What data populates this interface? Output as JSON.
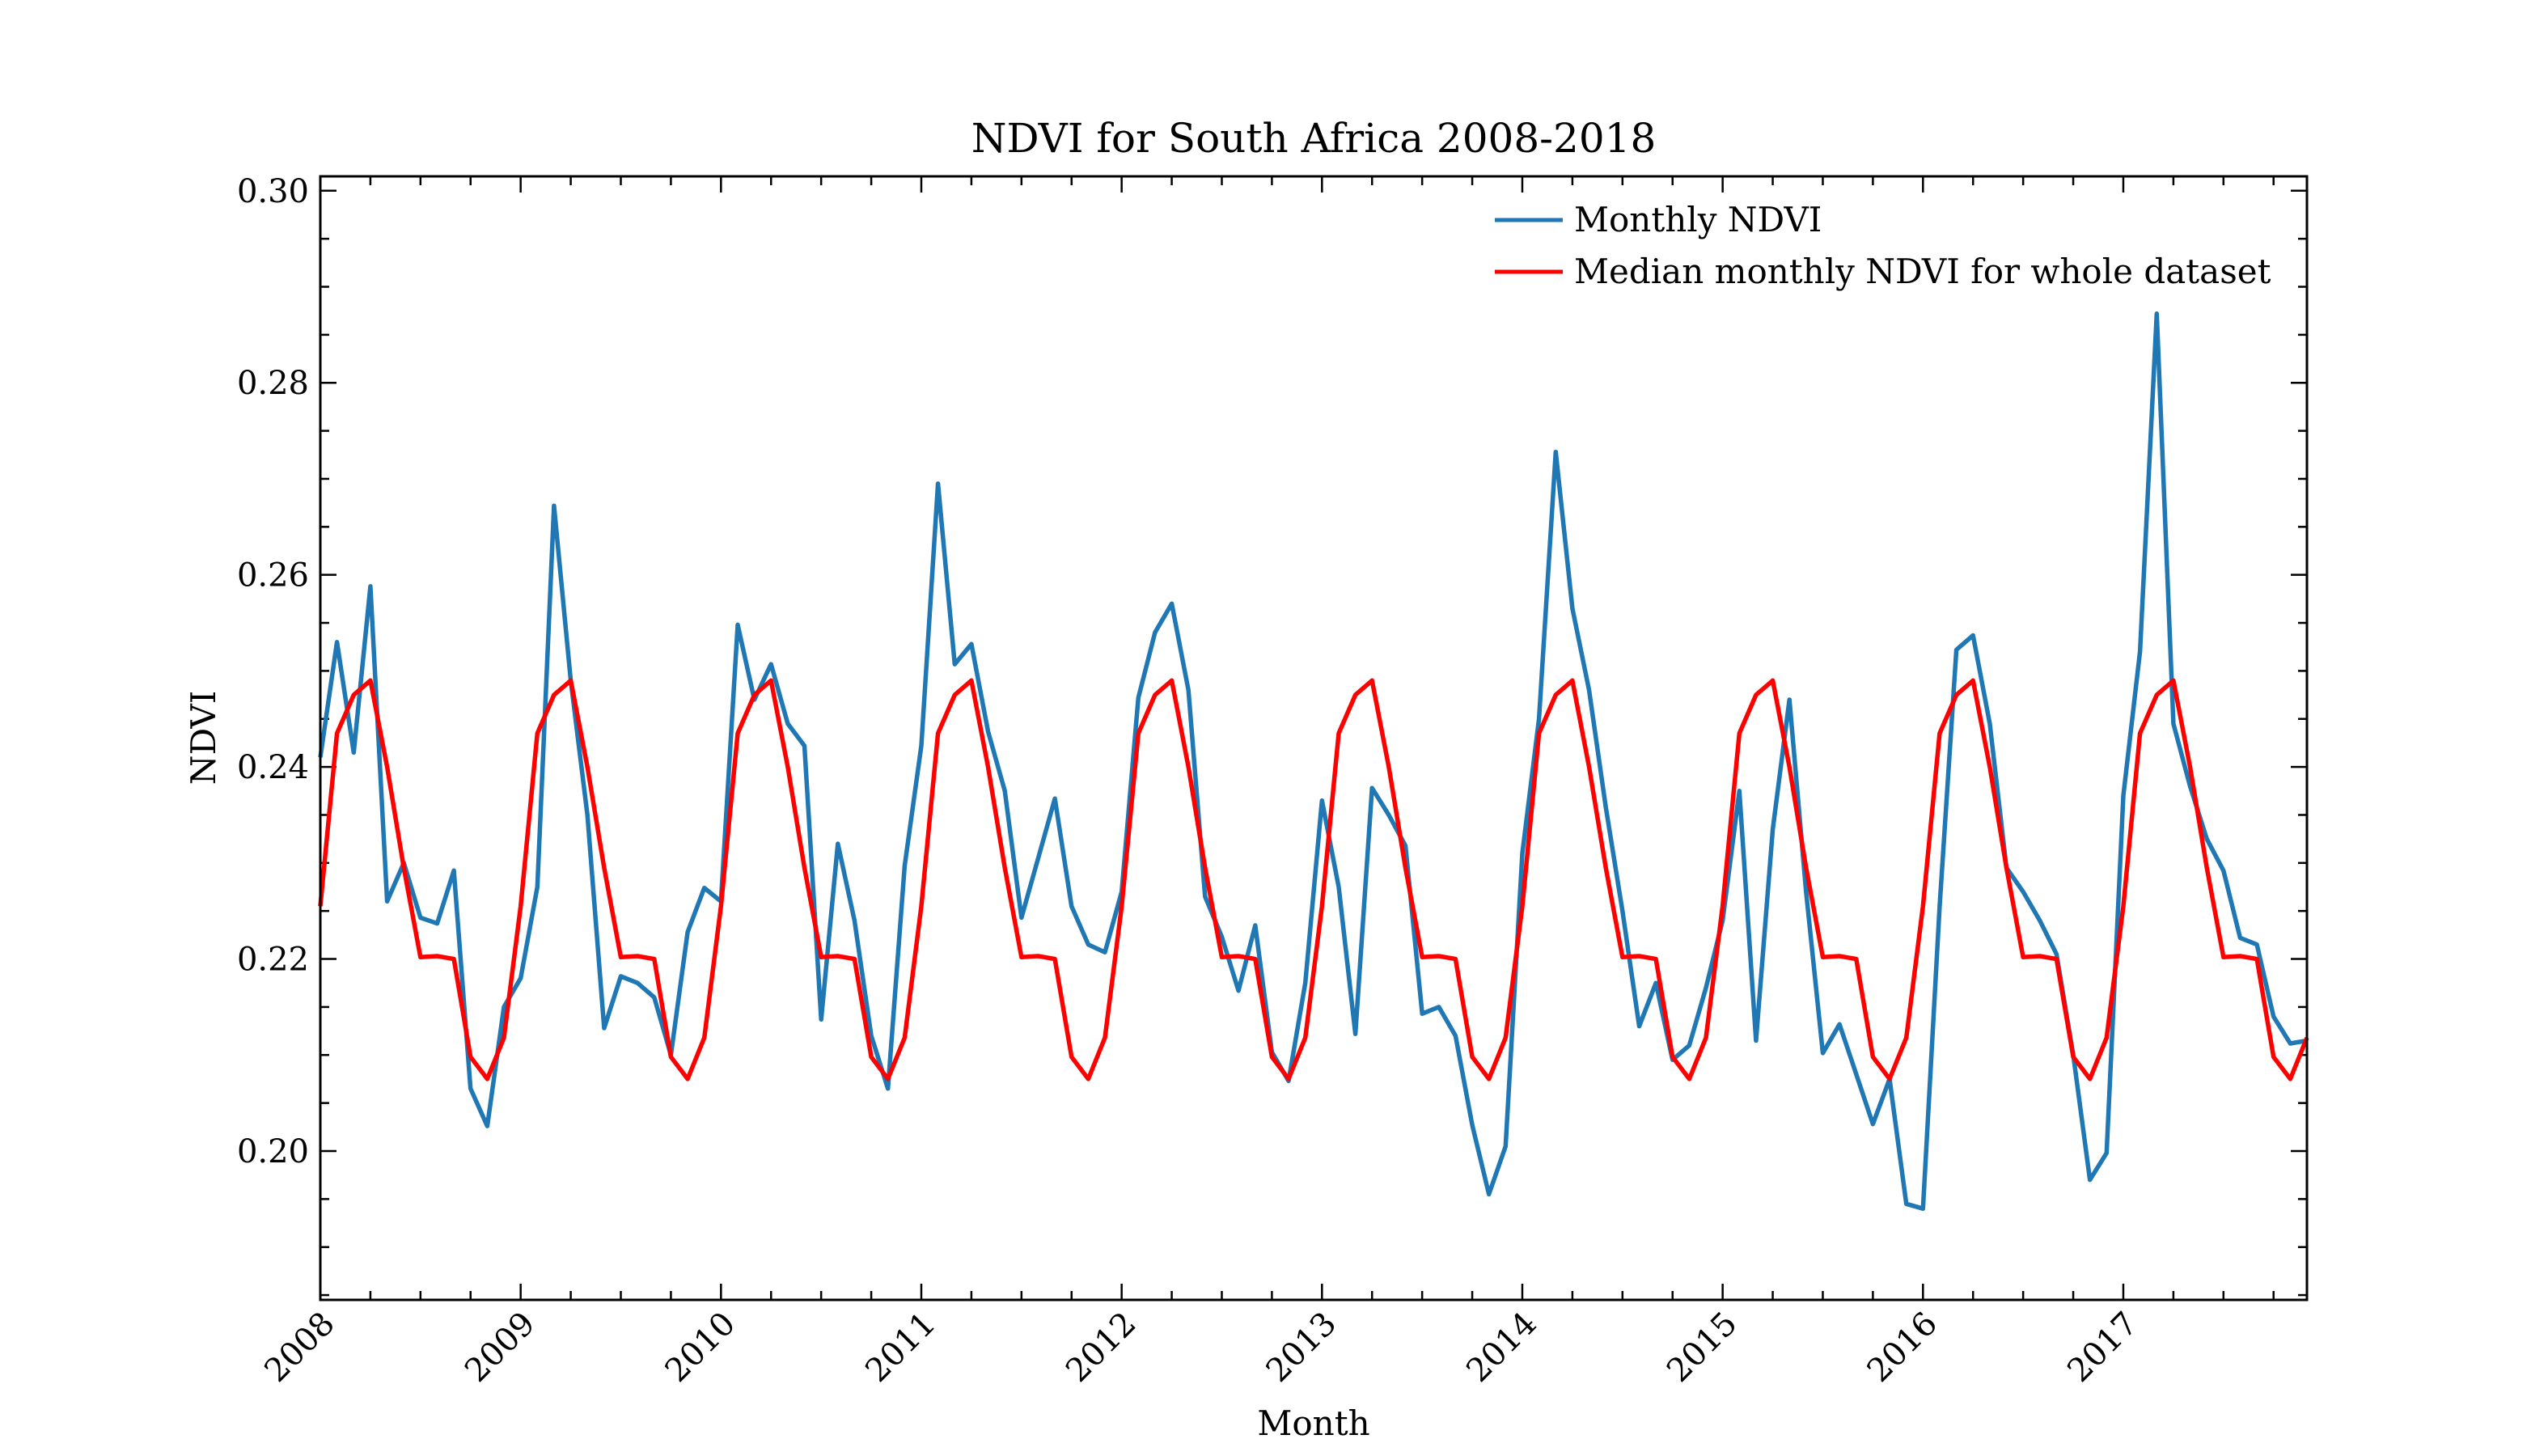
{
  "chart_data": {
    "type": "line",
    "title": "NDVI for South Africa 2008-2018",
    "xlabel": "Month",
    "ylabel": "NDVI",
    "xlim": [
      "2008-01",
      "2017-12"
    ],
    "ylim": [
      0.1845,
      0.3015
    ],
    "x_ticks": [
      "2008",
      "2009",
      "2010",
      "2011",
      "2012",
      "2013",
      "2014",
      "2015",
      "2016",
      "2017"
    ],
    "y_ticks": [
      "0.20",
      "0.22",
      "0.24",
      "0.26",
      "0.28",
      "0.30"
    ],
    "y_tick_values": [
      0.2,
      0.22,
      0.24,
      0.26,
      0.28,
      0.3
    ],
    "grid": false,
    "legend_position": "top-right",
    "x_start": "2008-01",
    "series": [
      {
        "name": "Monthly NDVI",
        "color": "#1f77b4",
        "values": [
          0.241,
          0.253,
          0.2415,
          0.2588,
          0.226,
          0.23,
          0.2243,
          0.2237,
          0.2292,
          0.2065,
          0.2026,
          0.215,
          0.218,
          0.2275,
          0.2672,
          0.249,
          0.235,
          0.2128,
          0.2182,
          0.2175,
          0.216,
          0.21,
          0.2228,
          0.2274,
          0.226,
          0.2548,
          0.247,
          0.2507,
          0.2445,
          0.2422,
          0.2137,
          0.232,
          0.224,
          0.212,
          0.2065,
          0.2297,
          0.2422,
          0.2695,
          0.2507,
          0.2528,
          0.2437,
          0.2375,
          0.2243,
          0.2305,
          0.2367,
          0.2255,
          0.2215,
          0.2207,
          0.227,
          0.2472,
          0.254,
          0.257,
          0.248,
          0.2265,
          0.2223,
          0.2167,
          0.2235,
          0.2103,
          0.2073,
          0.2175,
          0.2365,
          0.2275,
          0.2122,
          0.2378,
          0.235,
          0.2318,
          0.2143,
          0.215,
          0.212,
          0.2027,
          0.1955,
          0.2005,
          0.231,
          0.245,
          0.2728,
          0.2565,
          0.248,
          0.2358,
          0.225,
          0.213,
          0.2175,
          0.2095,
          0.211,
          0.217,
          0.224,
          0.2375,
          0.2115,
          0.2335,
          0.247,
          0.227,
          0.2102,
          0.2132,
          0.208,
          0.2028,
          0.2075,
          0.1945,
          0.194,
          0.2255,
          0.2522,
          0.2537,
          0.2445,
          0.2295,
          0.227,
          0.224,
          0.2205,
          0.21,
          0.197,
          0.1998,
          0.237,
          0.252,
          0.2872,
          0.2445,
          0.238,
          0.2325,
          0.2292,
          0.2222,
          0.2215,
          0.214,
          0.2112,
          0.2115
        ]
      },
      {
        "name": "Median monthly NDVI for whole dataset",
        "color": "#ff0000",
        "values": [
          0.2255,
          0.2435,
          0.2475,
          0.249,
          0.24,
          0.2295,
          0.2202,
          0.2203,
          0.22,
          0.2098,
          0.2075,
          0.2118,
          0.2255,
          0.2435,
          0.2475,
          0.249,
          0.24,
          0.2295,
          0.2202,
          0.2203,
          0.22,
          0.2098,
          0.2075,
          0.2118,
          0.2255,
          0.2435,
          0.2475,
          0.249,
          0.24,
          0.2295,
          0.2202,
          0.2203,
          0.22,
          0.2098,
          0.2075,
          0.2118,
          0.2255,
          0.2435,
          0.2475,
          0.249,
          0.24,
          0.2295,
          0.2202,
          0.2203,
          0.22,
          0.2098,
          0.2075,
          0.2118,
          0.2255,
          0.2435,
          0.2475,
          0.249,
          0.24,
          0.2295,
          0.2202,
          0.2203,
          0.22,
          0.2098,
          0.2075,
          0.2118,
          0.2255,
          0.2435,
          0.2475,
          0.249,
          0.24,
          0.2295,
          0.2202,
          0.2203,
          0.22,
          0.2098,
          0.2075,
          0.2118,
          0.2255,
          0.2435,
          0.2475,
          0.249,
          0.24,
          0.2295,
          0.2202,
          0.2203,
          0.22,
          0.2098,
          0.2075,
          0.2118,
          0.2255,
          0.2435,
          0.2475,
          0.249,
          0.24,
          0.2295,
          0.2202,
          0.2203,
          0.22,
          0.2098,
          0.2075,
          0.2118,
          0.2255,
          0.2435,
          0.2475,
          0.249,
          0.24,
          0.2295,
          0.2202,
          0.2203,
          0.22,
          0.2098,
          0.2075,
          0.2118,
          0.2255,
          0.2435,
          0.2475,
          0.249,
          0.24,
          0.2295,
          0.2202,
          0.2203,
          0.22,
          0.2098,
          0.2075,
          0.2118
        ]
      }
    ]
  }
}
